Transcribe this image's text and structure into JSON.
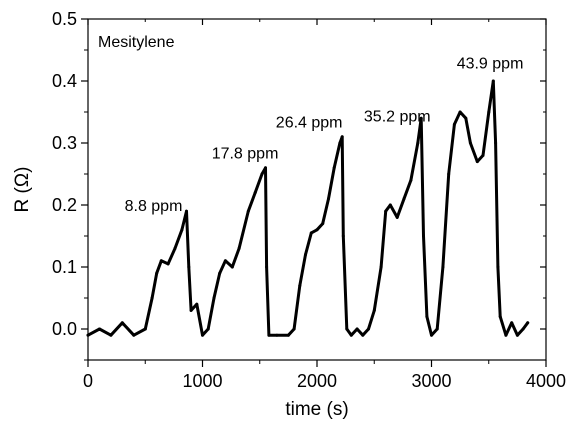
{
  "chart_data": {
    "type": "line",
    "xlabel": "time (s)",
    "ylabel": "R (Ω)",
    "xlim": [
      0,
      4000
    ],
    "ylim": [
      -0.05,
      0.5
    ],
    "xticks": [
      0,
      1000,
      2000,
      3000,
      4000
    ],
    "xtick_labels": [
      "0",
      "1000",
      "2000",
      "3000",
      "4000"
    ],
    "yticks": [
      0.0,
      0.1,
      0.2,
      0.3,
      0.4,
      0.5
    ],
    "ytick_labels": [
      "0.0",
      "0.1",
      "0.2",
      "0.3",
      "0.4",
      "0.5"
    ],
    "grid": false,
    "line_color": "#000000",
    "inset_label": "Mesitylene",
    "series": [
      {
        "x": [
          0,
          100,
          200,
          300,
          400,
          500,
          560,
          600,
          640,
          700,
          760,
          820,
          860,
          880,
          900,
          950,
          1000,
          1050,
          1100,
          1150,
          1200,
          1260,
          1320,
          1400,
          1460,
          1520,
          1550,
          1560,
          1580,
          1650,
          1750,
          1800,
          1850,
          1900,
          1950,
          2000,
          2050,
          2100,
          2150,
          2200,
          2220,
          2230,
          2260,
          2300,
          2350,
          2400,
          2450,
          2500,
          2560,
          2600,
          2640,
          2700,
          2760,
          2820,
          2880,
          2910,
          2930,
          2960,
          3000,
          3050,
          3100,
          3150,
          3200,
          3250,
          3300,
          3340,
          3400,
          3450,
          3500,
          3540,
          3560,
          3580,
          3600,
          3650,
          3700,
          3750,
          3800,
          3840
        ],
        "y": [
          -0.01,
          0.0,
          -0.01,
          0.01,
          -0.01,
          0.0,
          0.05,
          0.09,
          0.11,
          0.105,
          0.13,
          0.16,
          0.19,
          0.1,
          0.03,
          0.04,
          -0.01,
          0.0,
          0.05,
          0.09,
          0.11,
          0.1,
          0.13,
          0.19,
          0.22,
          0.25,
          0.26,
          0.1,
          -0.01,
          -0.01,
          -0.01,
          0.0,
          0.07,
          0.12,
          0.155,
          0.16,
          0.17,
          0.21,
          0.26,
          0.3,
          0.31,
          0.15,
          0.0,
          -0.01,
          0.0,
          -0.01,
          0.0,
          0.03,
          0.1,
          0.19,
          0.2,
          0.18,
          0.21,
          0.24,
          0.3,
          0.34,
          0.15,
          0.02,
          -0.01,
          0.0,
          0.1,
          0.25,
          0.33,
          0.35,
          0.34,
          0.3,
          0.27,
          0.28,
          0.35,
          0.4,
          0.3,
          0.1,
          0.02,
          -0.01,
          0.01,
          -0.01,
          0.0,
          0.01
        ]
      }
    ],
    "annotations": [
      {
        "text": "8.8 ppm",
        "x": 320,
        "y": 0.19
      },
      {
        "text": "17.8 ppm",
        "x": 1080,
        "y": 0.275
      },
      {
        "text": "26.4 ppm",
        "x": 1640,
        "y": 0.325
      },
      {
        "text": "35.2 ppm",
        "x": 2410,
        "y": 0.335
      },
      {
        "text": "43.9 ppm",
        "x": 3220,
        "y": 0.42
      }
    ]
  }
}
